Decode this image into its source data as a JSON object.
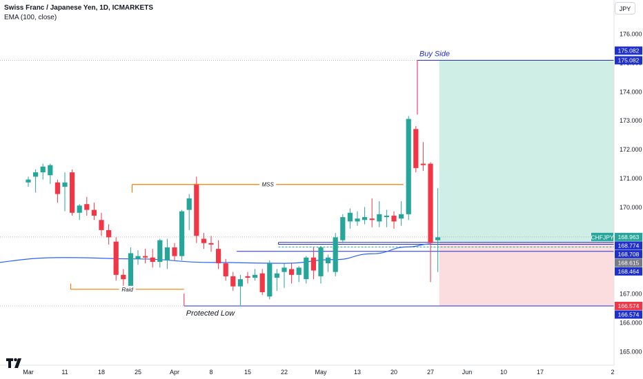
{
  "header": {
    "title": "Swiss Franc / Japanese Yen, 1D, ICMARKETS",
    "indicator": "EMA (100, close)"
  },
  "currency_button": "JPY",
  "chart_data": {
    "type": "candlestick",
    "symbol": "CHFJPY",
    "ylim": [
      164.75,
      176.6
    ],
    "y_ticks": [
      165.0,
      166.0,
      167.0,
      168.0,
      169.0,
      170.0,
      171.0,
      172.0,
      173.0,
      174.0,
      175.0,
      176.0
    ],
    "x_ticks": [
      {
        "label": "Mar",
        "idx": 0
      },
      {
        "label": "11",
        "idx": 5
      },
      {
        "label": "18",
        "idx": 10
      },
      {
        "label": "25",
        "idx": 15
      },
      {
        "label": "Apr",
        "idx": 20
      },
      {
        "label": "8",
        "idx": 25
      },
      {
        "label": "15",
        "idx": 30
      },
      {
        "label": "22",
        "idx": 35
      },
      {
        "label": "May",
        "idx": 40
      },
      {
        "label": "13",
        "idx": 45
      },
      {
        "label": "20",
        "idx": 50
      },
      {
        "label": "27",
        "idx": 55
      },
      {
        "label": "Jun",
        "idx": 60
      },
      {
        "label": "10",
        "idx": 65
      },
      {
        "label": "17",
        "idx": 70
      },
      {
        "label": "2",
        "idx": 74
      }
    ],
    "candles": [
      {
        "o": 170.85,
        "h": 171.05,
        "l": 170.7,
        "c": 170.95
      },
      {
        "o": 171.05,
        "h": 171.3,
        "l": 170.5,
        "c": 171.2
      },
      {
        "o": 171.2,
        "h": 171.5,
        "l": 170.95,
        "c": 171.4
      },
      {
        "o": 171.1,
        "h": 171.5,
        "l": 170.8,
        "c": 171.45
      },
      {
        "o": 170.85,
        "h": 170.95,
        "l": 170.15,
        "c": 170.45
      },
      {
        "o": 170.7,
        "h": 171.2,
        "l": 169.85,
        "c": 170.85
      },
      {
        "o": 171.2,
        "h": 171.3,
        "l": 169.7,
        "c": 169.8
      },
      {
        "o": 169.8,
        "h": 170.1,
        "l": 169.55,
        "c": 170.05
      },
      {
        "o": 170.1,
        "h": 170.35,
        "l": 169.7,
        "c": 169.9
      },
      {
        "o": 169.9,
        "h": 170.15,
        "l": 169.55,
        "c": 169.7
      },
      {
        "o": 169.55,
        "h": 169.8,
        "l": 169.0,
        "c": 169.2
      },
      {
        "o": 169.2,
        "h": 169.4,
        "l": 168.7,
        "c": 168.95
      },
      {
        "o": 168.8,
        "h": 168.95,
        "l": 167.45,
        "c": 167.65
      },
      {
        "o": 167.65,
        "h": 167.85,
        "l": 167.25,
        "c": 167.5
      },
      {
        "o": 167.2,
        "h": 168.6,
        "l": 167.1,
        "c": 168.4
      },
      {
        "o": 168.2,
        "h": 168.5,
        "l": 168.0,
        "c": 168.3
      },
      {
        "o": 168.3,
        "h": 168.55,
        "l": 168.05,
        "c": 168.25
      },
      {
        "o": 168.25,
        "h": 168.55,
        "l": 167.9,
        "c": 168.1
      },
      {
        "o": 168.1,
        "h": 168.9,
        "l": 167.9,
        "c": 168.85
      },
      {
        "o": 168.15,
        "h": 168.9,
        "l": 167.85,
        "c": 168.6
      },
      {
        "o": 168.6,
        "h": 168.75,
        "l": 168.15,
        "c": 168.3
      },
      {
        "o": 168.3,
        "h": 169.9,
        "l": 168.15,
        "c": 169.85
      },
      {
        "o": 169.9,
        "h": 170.45,
        "l": 169.2,
        "c": 170.3
      },
      {
        "o": 170.8,
        "h": 171.05,
        "l": 168.75,
        "c": 169.0
      },
      {
        "o": 168.9,
        "h": 169.1,
        "l": 168.55,
        "c": 168.75
      },
      {
        "o": 168.75,
        "h": 169.0,
        "l": 168.45,
        "c": 168.7
      },
      {
        "o": 168.55,
        "h": 168.85,
        "l": 167.85,
        "c": 168.05
      },
      {
        "o": 168.05,
        "h": 168.2,
        "l": 167.45,
        "c": 167.6
      },
      {
        "o": 167.6,
        "h": 167.75,
        "l": 167.1,
        "c": 167.25
      },
      {
        "o": 167.25,
        "h": 167.65,
        "l": 166.6,
        "c": 167.5
      },
      {
        "o": 167.6,
        "h": 167.75,
        "l": 167.35,
        "c": 167.55
      },
      {
        "o": 167.55,
        "h": 167.85,
        "l": 167.45,
        "c": 167.65
      },
      {
        "o": 167.7,
        "h": 167.85,
        "l": 166.95,
        "c": 167.05
      },
      {
        "o": 166.9,
        "h": 168.15,
        "l": 166.8,
        "c": 168.05
      },
      {
        "o": 167.55,
        "h": 167.85,
        "l": 167.1,
        "c": 167.7
      },
      {
        "o": 167.75,
        "h": 168.05,
        "l": 167.2,
        "c": 167.9
      },
      {
        "o": 167.85,
        "h": 168.05,
        "l": 167.35,
        "c": 167.65
      },
      {
        "o": 167.65,
        "h": 167.95,
        "l": 167.4,
        "c": 167.9
      },
      {
        "o": 167.5,
        "h": 168.3,
        "l": 167.35,
        "c": 168.25
      },
      {
        "o": 168.25,
        "h": 168.6,
        "l": 167.5,
        "c": 167.8
      },
      {
        "o": 167.6,
        "h": 168.65,
        "l": 167.35,
        "c": 168.6
      },
      {
        "o": 168.05,
        "h": 168.35,
        "l": 167.75,
        "c": 168.25
      },
      {
        "o": 167.75,
        "h": 169.1,
        "l": 167.6,
        "c": 168.95
      },
      {
        "o": 168.85,
        "h": 169.75,
        "l": 168.75,
        "c": 169.65
      },
      {
        "o": 169.5,
        "h": 169.95,
        "l": 169.25,
        "c": 169.8
      },
      {
        "o": 169.5,
        "h": 169.85,
        "l": 169.35,
        "c": 169.6
      },
      {
        "o": 169.55,
        "h": 170.0,
        "l": 169.4,
        "c": 169.65
      },
      {
        "o": 169.6,
        "h": 170.3,
        "l": 169.3,
        "c": 169.55
      },
      {
        "o": 169.5,
        "h": 170.2,
        "l": 169.3,
        "c": 169.75
      },
      {
        "o": 169.65,
        "h": 169.9,
        "l": 169.3,
        "c": 169.7
      },
      {
        "o": 169.7,
        "h": 169.85,
        "l": 169.25,
        "c": 169.5
      },
      {
        "o": 169.6,
        "h": 170.2,
        "l": 169.35,
        "c": 169.75
      },
      {
        "o": 169.75,
        "h": 173.15,
        "l": 169.55,
        "c": 173.05
      },
      {
        "o": 172.7,
        "h": 172.8,
        "l": 171.2,
        "c": 171.35
      },
      {
        "o": 171.5,
        "h": 172.25,
        "l": 171.25,
        "c": 171.45
      },
      {
        "o": 171.5,
        "h": 171.55,
        "l": 167.4,
        "c": 168.75
      },
      {
        "o": 168.85,
        "h": 170.65,
        "l": 167.75,
        "c": 168.95
      }
    ],
    "ema100": [
      {
        "idx": -10,
        "v": 168.0
      },
      {
        "idx": 5,
        "v": 168.25
      },
      {
        "idx": 15,
        "v": 168.2
      },
      {
        "idx": 25,
        "v": 168.08
      },
      {
        "idx": 35,
        "v": 168.05
      },
      {
        "idx": 42,
        "v": 168.18
      },
      {
        "idx": 47,
        "v": 168.38
      },
      {
        "idx": 52,
        "v": 168.62
      },
      {
        "idx": 55,
        "v": 168.72
      }
    ],
    "annotations": {
      "buy_side_label": "Buy Side",
      "buy_side_price": 175.082,
      "protected_low_label": "Protected Low",
      "protected_low_price": 166.574,
      "mss_label": "MSS",
      "mss_price": 170.78,
      "raid_label": "Raid",
      "raid_price": 167.15
    },
    "position": {
      "entry": 168.774,
      "target": 175.082,
      "stop": 166.574,
      "entry_line2": 168.708,
      "dashed_level": 168.615,
      "start_idx": 56.2
    },
    "price_labels": [
      {
        "text": "175.082",
        "value": 175.082,
        "color": "#1f2fcc",
        "offset": -14
      },
      {
        "text": "175.082",
        "value": 175.082,
        "color": "#1f2fcc",
        "offset": 0
      },
      {
        "text": "168.963",
        "value": 168.963,
        "color": "#26a69a",
        "offset": 0
      },
      {
        "text": "168.774",
        "value": 168.774,
        "color": "#1f2fcc",
        "offset": 0
      },
      {
        "text": "168.708",
        "value": 168.708,
        "color": "#1f2fcc",
        "offset": 0
      },
      {
        "text": "168.615",
        "value": 168.615,
        "color": "#787b86",
        "offset": 0
      },
      {
        "text": "168.464",
        "value": 168.464,
        "color": "#1f2fcc",
        "offset": 0
      },
      {
        "text": "166.574",
        "value": 166.574,
        "color": "#f23645",
        "offset": 0
      },
      {
        "text": "166.574",
        "value": 166.574,
        "color": "#1f2fcc",
        "offset": 0
      }
    ],
    "symbol_tag": "CHFJPY",
    "colors": {
      "up": "#26a69a",
      "down": "#f23645",
      "ema": "#2962ff",
      "level": "#1f2fcc",
      "orange": "#f57c00",
      "target_zone": "#cfeee5",
      "stop_zone": "#fbdcdf",
      "pink": "#e91e63"
    }
  }
}
